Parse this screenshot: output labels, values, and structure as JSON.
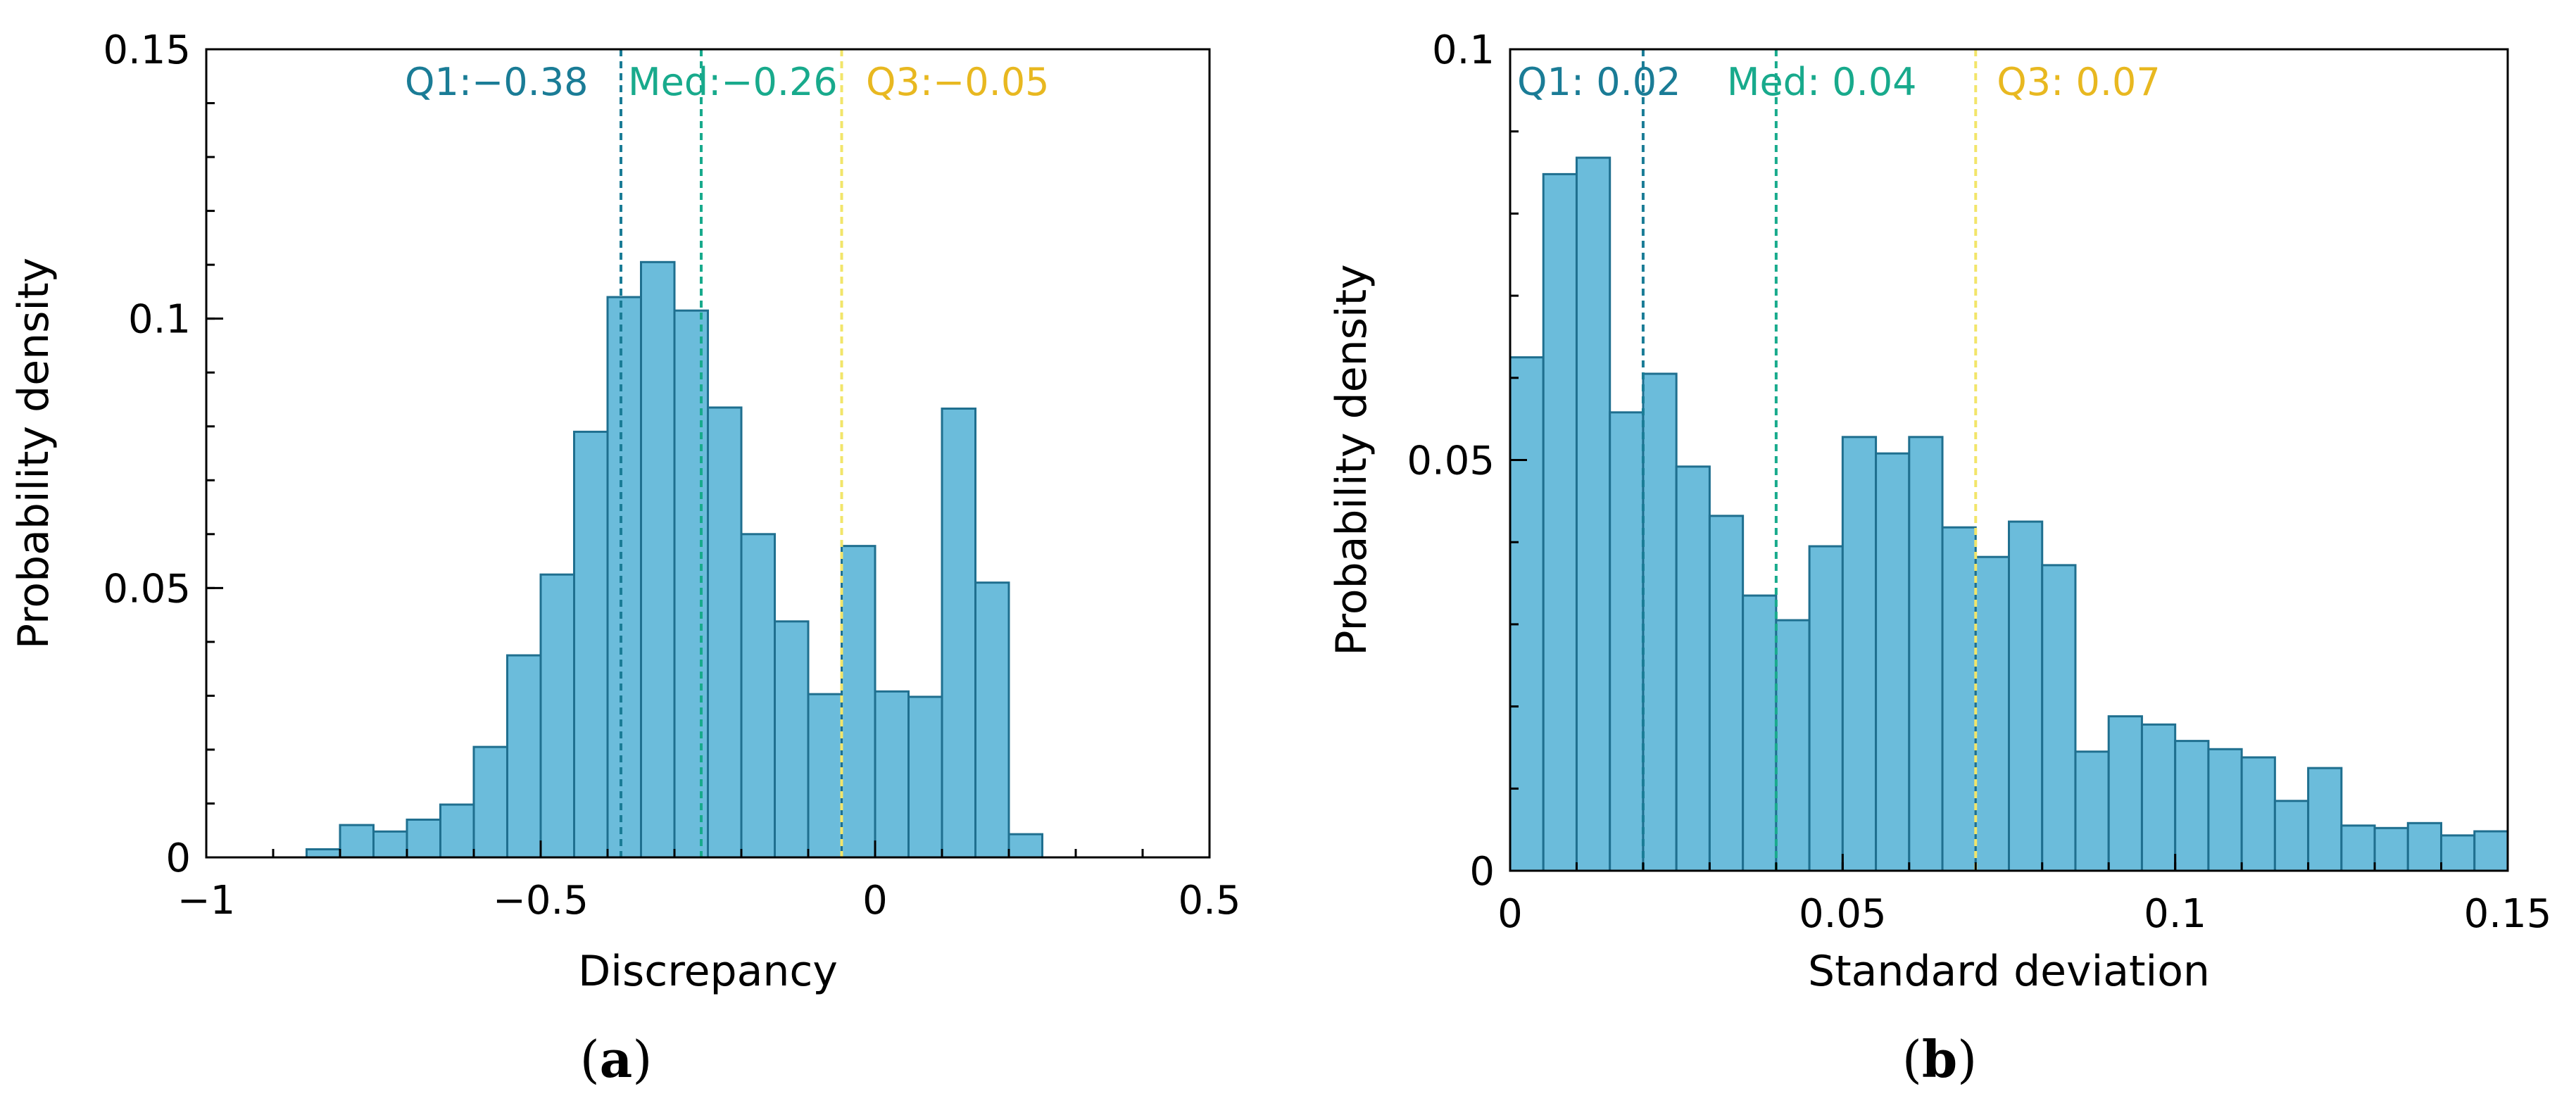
{
  "chart_data": [
    {
      "type": "bar",
      "panel_label": "(a)",
      "panel_letter": "a",
      "xlabel": "Discrepancy",
      "ylabel": "Probability density",
      "xlim": [
        -1,
        0.5
      ],
      "ylim": [
        0,
        0.15
      ],
      "x_ticks": [
        {
          "value": -1,
          "label": "−1"
        },
        {
          "value": -0.5,
          "label": "−0.5"
        },
        {
          "value": 0,
          "label": "0"
        },
        {
          "value": 0.5,
          "label": "0.5"
        }
      ],
      "y_ticks": [
        {
          "value": 0,
          "label": "0"
        },
        {
          "value": 0.05,
          "label": "0.05"
        },
        {
          "value": 0.1,
          "label": "0.1"
        },
        {
          "value": 0.15,
          "label": "0.15"
        }
      ],
      "bin_start": -0.85,
      "bin_width": 0.05,
      "values": [
        0.0015,
        0.006,
        0.0048,
        0.007,
        0.0098,
        0.0205,
        0.0375,
        0.0525,
        0.079,
        0.104,
        0.1105,
        0.1015,
        0.0835,
        0.06,
        0.0438,
        0.0303,
        0.0578,
        0.0308,
        0.0298,
        0.0833,
        0.051,
        0.0043
      ],
      "quartiles": [
        {
          "value": -0.38,
          "label": "Q1:−0.38",
          "color": "#1a7c96"
        },
        {
          "value": -0.26,
          "label": "Med:−0.26",
          "color": "#18aa8c"
        },
        {
          "value": -0.05,
          "label": "Q3:−0.05",
          "color": "#e8b820"
        }
      ]
    },
    {
      "type": "bar",
      "panel_label": "(b)",
      "panel_letter": "b",
      "xlabel": "Standard deviation",
      "ylabel": "Probability density",
      "xlim": [
        0,
        0.15
      ],
      "ylim": [
        0,
        0.1
      ],
      "x_ticks": [
        {
          "value": 0,
          "label": "0"
        },
        {
          "value": 0.05,
          "label": "0.05"
        },
        {
          "value": 0.1,
          "label": "0.1"
        },
        {
          "value": 0.15,
          "label": "0.15"
        }
      ],
      "y_ticks": [
        {
          "value": 0,
          "label": "0"
        },
        {
          "value": 0.05,
          "label": "0.05"
        },
        {
          "value": 0.1,
          "label": "0.1"
        }
      ],
      "bin_start": 0,
      "bin_width": 0.005,
      "values": [
        0.0625,
        0.0848,
        0.0868,
        0.0558,
        0.0605,
        0.0492,
        0.0432,
        0.0335,
        0.0305,
        0.0395,
        0.0528,
        0.0508,
        0.0528,
        0.0418,
        0.0382,
        0.0425,
        0.0372,
        0.0145,
        0.0188,
        0.0178,
        0.0158,
        0.0148,
        0.0138,
        0.0085,
        0.0125,
        0.0055,
        0.0052,
        0.0058,
        0.0043,
        0.0048
      ],
      "quartiles": [
        {
          "value": 0.02,
          "label": "Q1: 0.02",
          "color": "#1a7c96"
        },
        {
          "value": 0.04,
          "label": "Med: 0.04",
          "color": "#18aa8c"
        },
        {
          "value": 0.07,
          "label": "Q3: 0.07",
          "color": "#e8b820"
        }
      ]
    }
  ],
  "colors": {
    "bar_fill": "#6bbcdb",
    "bar_edge": "#1f6f8f",
    "axis": "#000000",
    "q3_line": "#f2e56a"
  }
}
